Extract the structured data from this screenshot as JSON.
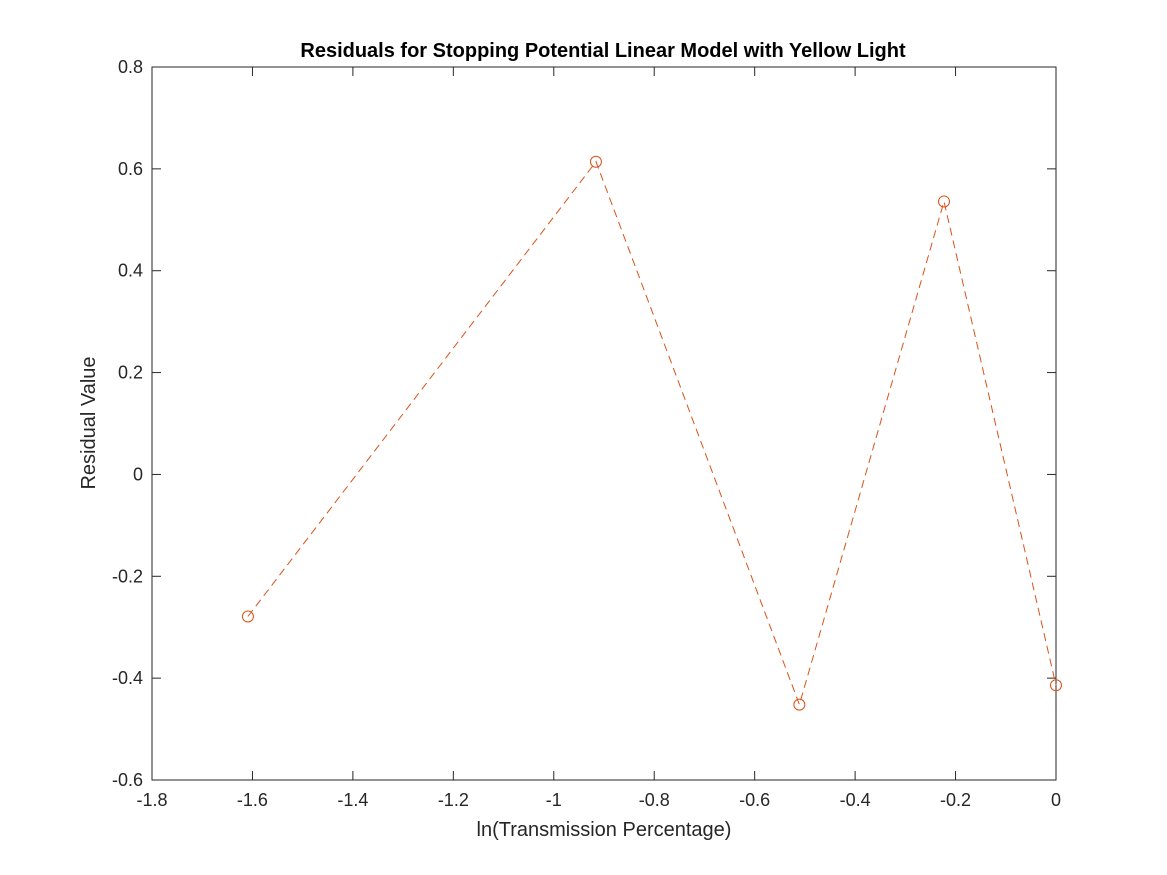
{
  "chart_data": {
    "type": "line",
    "title": "Residuals for Stopping Potential Linear Model with Yellow Light",
    "xlabel": "ln(Transmission Percentage)",
    "ylabel": "Residual Value",
    "xlim": [
      -1.8,
      0
    ],
    "ylim": [
      -0.6,
      0.8
    ],
    "xticks": [
      -1.8,
      -1.6,
      -1.4,
      -1.2,
      -1,
      -0.8,
      -0.6,
      -0.4,
      -0.2,
      0
    ],
    "xtick_labels": [
      "-1.8",
      "-1.6",
      "-1.4",
      "-1.2",
      "-1",
      "-0.8",
      "-0.6",
      "-0.4",
      "-0.2",
      "0"
    ],
    "yticks": [
      -0.6,
      -0.4,
      -0.2,
      0,
      0.2,
      0.4,
      0.6,
      0.8
    ],
    "ytick_labels": [
      "-0.6",
      "-0.4",
      "-0.2",
      "0",
      "0.2",
      "0.4",
      "0.6",
      "0.8"
    ],
    "grid": false,
    "box": true,
    "series": [
      {
        "x": [
          -1.609,
          -0.916,
          -0.511,
          -0.223,
          0
        ],
        "y": [
          -0.279,
          0.614,
          -0.452,
          0.536,
          -0.414
        ],
        "color": "#D95319",
        "line_style": "dashed",
        "marker": "circle"
      }
    ]
  }
}
